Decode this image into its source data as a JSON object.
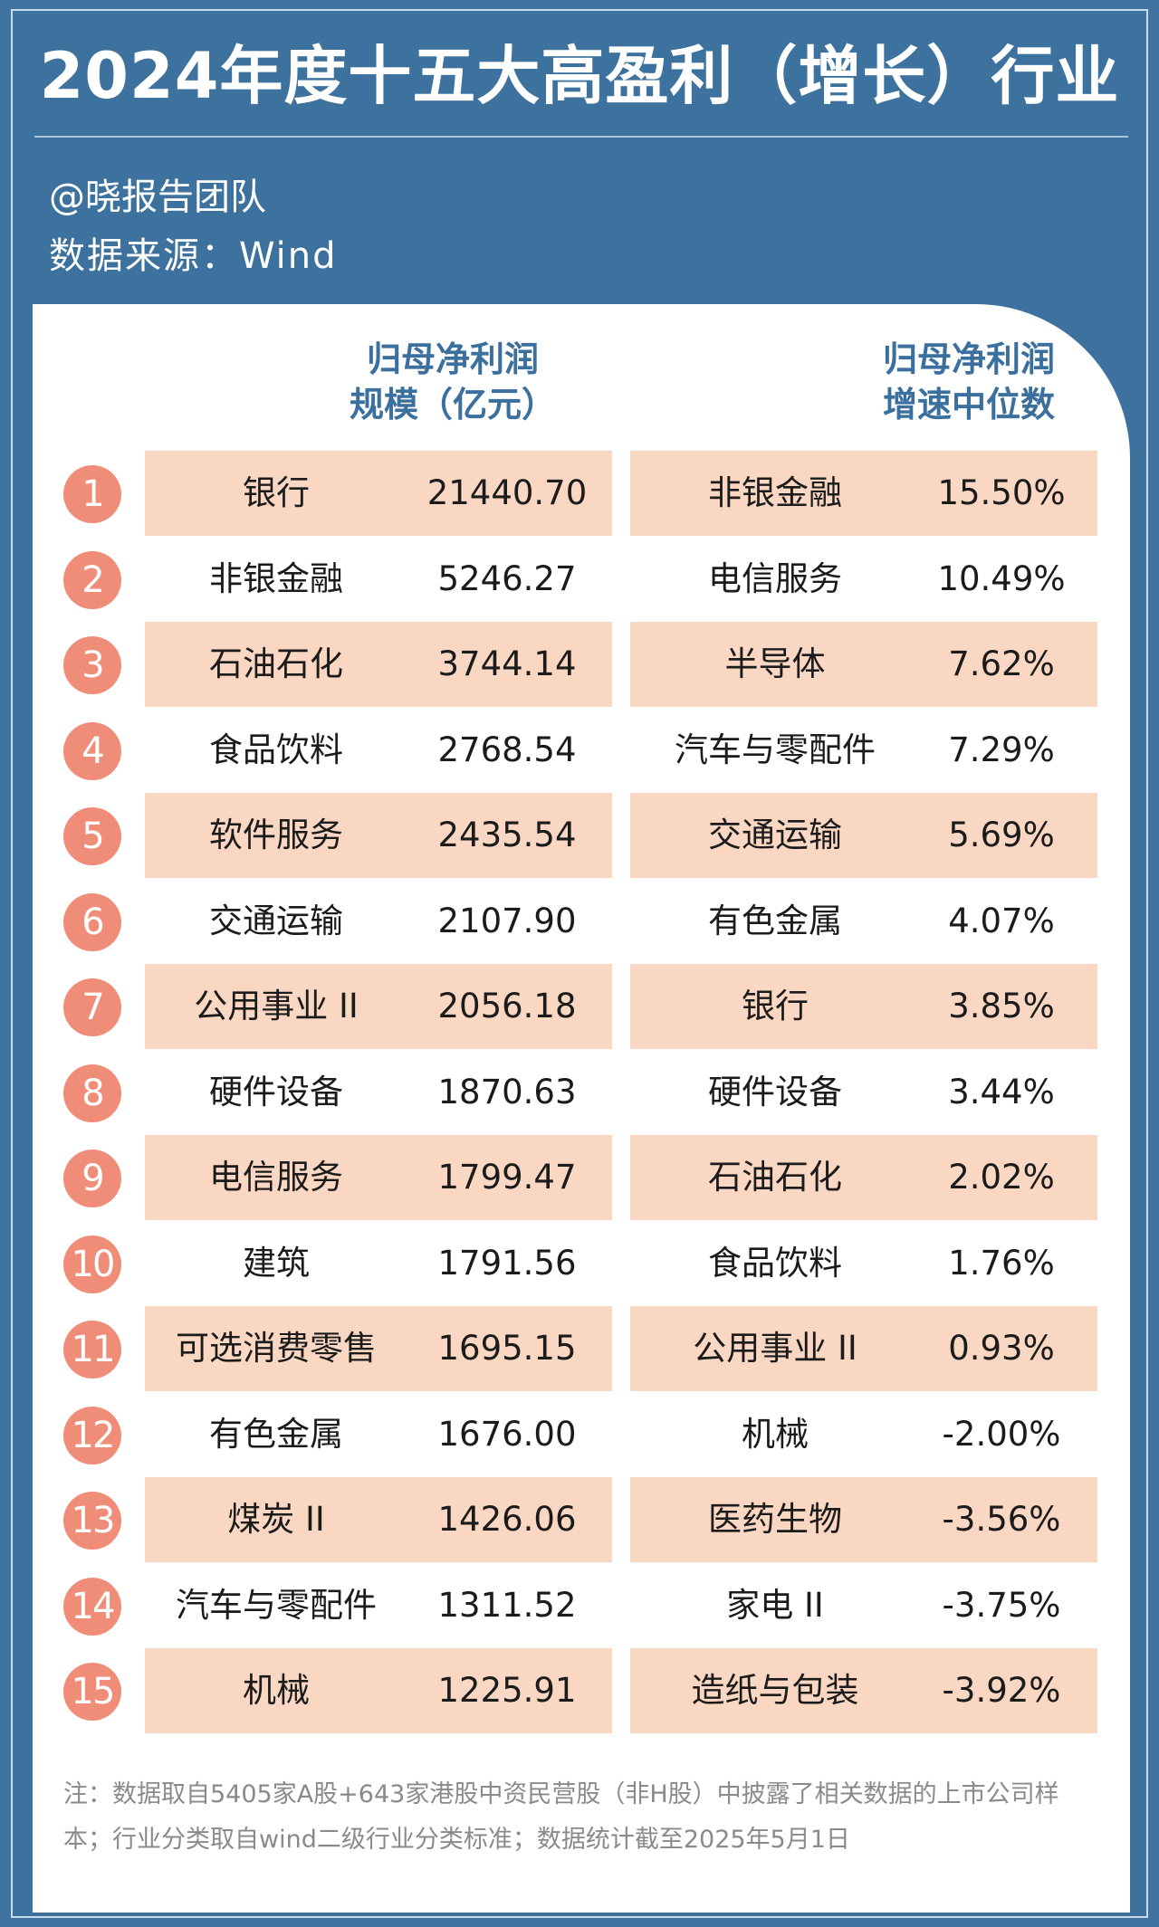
{
  "title": "2024年度十五大高盈利（增长）行业",
  "author": "@晓报告团队",
  "source": "数据来源：Wind",
  "headers": {
    "left": [
      "归母净利润",
      "规模（亿元）"
    ],
    "right": [
      "归母净利润",
      "增速中位数"
    ]
  },
  "rows": [
    {
      "rank": "1",
      "left_name": "银行",
      "left_value": "21440.70",
      "right_name": "非银金融",
      "right_value": "15.50%"
    },
    {
      "rank": "2",
      "left_name": "非银金融",
      "left_value": "5246.27",
      "right_name": "电信服务",
      "right_value": "10.49%"
    },
    {
      "rank": "3",
      "left_name": "石油石化",
      "left_value": "3744.14",
      "right_name": "半导体",
      "right_value": "7.62%"
    },
    {
      "rank": "4",
      "left_name": "食品饮料",
      "left_value": "2768.54",
      "right_name": "汽车与零配件",
      "right_value": "7.29%"
    },
    {
      "rank": "5",
      "left_name": "软件服务",
      "left_value": "2435.54",
      "right_name": "交通运输",
      "right_value": "5.69%"
    },
    {
      "rank": "6",
      "left_name": "交通运输",
      "left_value": "2107.90",
      "right_name": "有色金属",
      "right_value": "4.07%"
    },
    {
      "rank": "7",
      "left_name": "公用事业 II",
      "left_value": "2056.18",
      "right_name": "银行",
      "right_value": "3.85%"
    },
    {
      "rank": "8",
      "left_name": "硬件设备",
      "left_value": "1870.63",
      "right_name": "硬件设备",
      "right_value": "3.44%"
    },
    {
      "rank": "9",
      "left_name": "电信服务",
      "left_value": "1799.47",
      "right_name": "石油石化",
      "right_value": "2.02%"
    },
    {
      "rank": "10",
      "left_name": "建筑",
      "left_value": "1791.56",
      "right_name": "食品饮料",
      "right_value": "1.76%"
    },
    {
      "rank": "11",
      "left_name": "可选消费零售",
      "left_value": "1695.15",
      "right_name": "公用事业 II",
      "right_value": "0.93%"
    },
    {
      "rank": "12",
      "left_name": "有色金属",
      "left_value": "1676.00",
      "right_name": "机械",
      "right_value": "-2.00%"
    },
    {
      "rank": "13",
      "left_name": "煤炭 II",
      "left_value": "1426.06",
      "right_name": "医药生物",
      "right_value": "-3.56%"
    },
    {
      "rank": "14",
      "left_name": "汽车与零配件",
      "left_value": "1311.52",
      "right_name": "家电 II",
      "right_value": "-3.75%"
    },
    {
      "rank": "15",
      "left_name": "机械",
      "left_value": "1225.91",
      "right_name": "造纸与包装",
      "right_value": "-3.92%"
    }
  ],
  "note": "注：数据取自5405家A股+643家港股中资民营股（非H股）中披露了相关数据的上市公司样本；行业分类取自wind二级行业分类标准；数据统计截至2025年5月1日",
  "colors": {
    "background": "#3f74a0",
    "header_text": "#3a6f9e",
    "badge": "#f08d78",
    "shaded_row": "#f9d7c2"
  }
}
